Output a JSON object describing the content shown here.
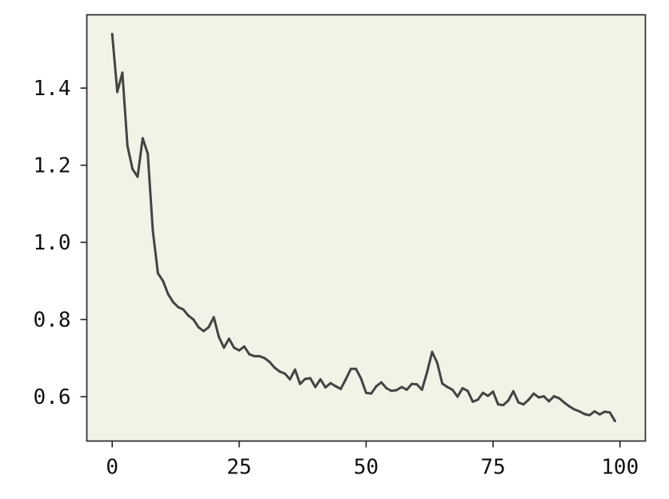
{
  "chart_data": {
    "type": "line",
    "title": "",
    "xlabel": "",
    "ylabel": "",
    "xlim": [
      -5,
      105
    ],
    "ylim": [
      0.485,
      1.59
    ],
    "grid": false,
    "legend": "none",
    "colors": {
      "background": "#ffffff",
      "plot_area": "#f3f2e7",
      "frame": "#333333",
      "line": "#444444",
      "text": "#111111"
    },
    "x_ticks": [
      0,
      25,
      50,
      75,
      100
    ],
    "x_tick_labels": [
      "0",
      "25",
      "50",
      "75",
      "100"
    ],
    "y_ticks": [
      0.6,
      0.8,
      1.0,
      1.2,
      1.4
    ],
    "y_tick_labels": [
      "0.6",
      "0.8",
      "1.0",
      "1.2",
      "1.4"
    ],
    "series": [
      {
        "x": [
          0,
          1,
          2,
          3,
          4,
          5,
          6,
          7,
          8,
          9,
          10,
          11,
          12,
          13,
          14,
          15,
          16,
          17,
          18,
          19,
          20,
          21,
          22,
          23,
          24,
          25,
          26,
          27,
          28,
          29,
          30,
          31,
          32,
          33,
          34,
          35,
          36,
          37,
          38,
          39,
          40,
          41,
          42,
          43,
          44,
          45,
          46,
          47,
          48,
          49,
          50,
          51,
          52,
          53,
          54,
          55,
          56,
          57,
          58,
          59,
          60,
          61,
          62,
          63,
          64,
          65,
          66,
          67,
          68,
          69,
          70,
          71,
          72,
          73,
          74,
          75,
          76,
          77,
          78,
          79,
          80,
          81,
          82,
          83,
          84,
          85,
          86,
          87,
          88,
          89,
          90,
          91,
          92,
          93,
          94,
          95,
          96,
          97,
          98,
          99
        ],
        "values": [
          1.54,
          1.39,
          1.44,
          1.25,
          1.19,
          1.17,
          1.27,
          1.23,
          1.03,
          0.92,
          0.9,
          0.866,
          0.845,
          0.832,
          0.826,
          0.81,
          0.8,
          0.78,
          0.77,
          0.78,
          0.806,
          0.755,
          0.727,
          0.75,
          0.727,
          0.72,
          0.73,
          0.71,
          0.705,
          0.705,
          0.7,
          0.69,
          0.675,
          0.665,
          0.66,
          0.645,
          0.67,
          0.633,
          0.646,
          0.648,
          0.625,
          0.645,
          0.624,
          0.635,
          0.627,
          0.62,
          0.645,
          0.672,
          0.672,
          0.647,
          0.61,
          0.608,
          0.627,
          0.637,
          0.622,
          0.615,
          0.617,
          0.625,
          0.618,
          0.633,
          0.632,
          0.618,
          0.663,
          0.716,
          0.688,
          0.634,
          0.625,
          0.618,
          0.6,
          0.622,
          0.615,
          0.587,
          0.592,
          0.61,
          0.602,
          0.613,
          0.58,
          0.578,
          0.59,
          0.614,
          0.585,
          0.58,
          0.592,
          0.608,
          0.598,
          0.601,
          0.588,
          0.601,
          0.596,
          0.585,
          0.575,
          0.567,
          0.562,
          0.555,
          0.552,
          0.562,
          0.554,
          0.561,
          0.559,
          0.537
        ]
      }
    ]
  }
}
